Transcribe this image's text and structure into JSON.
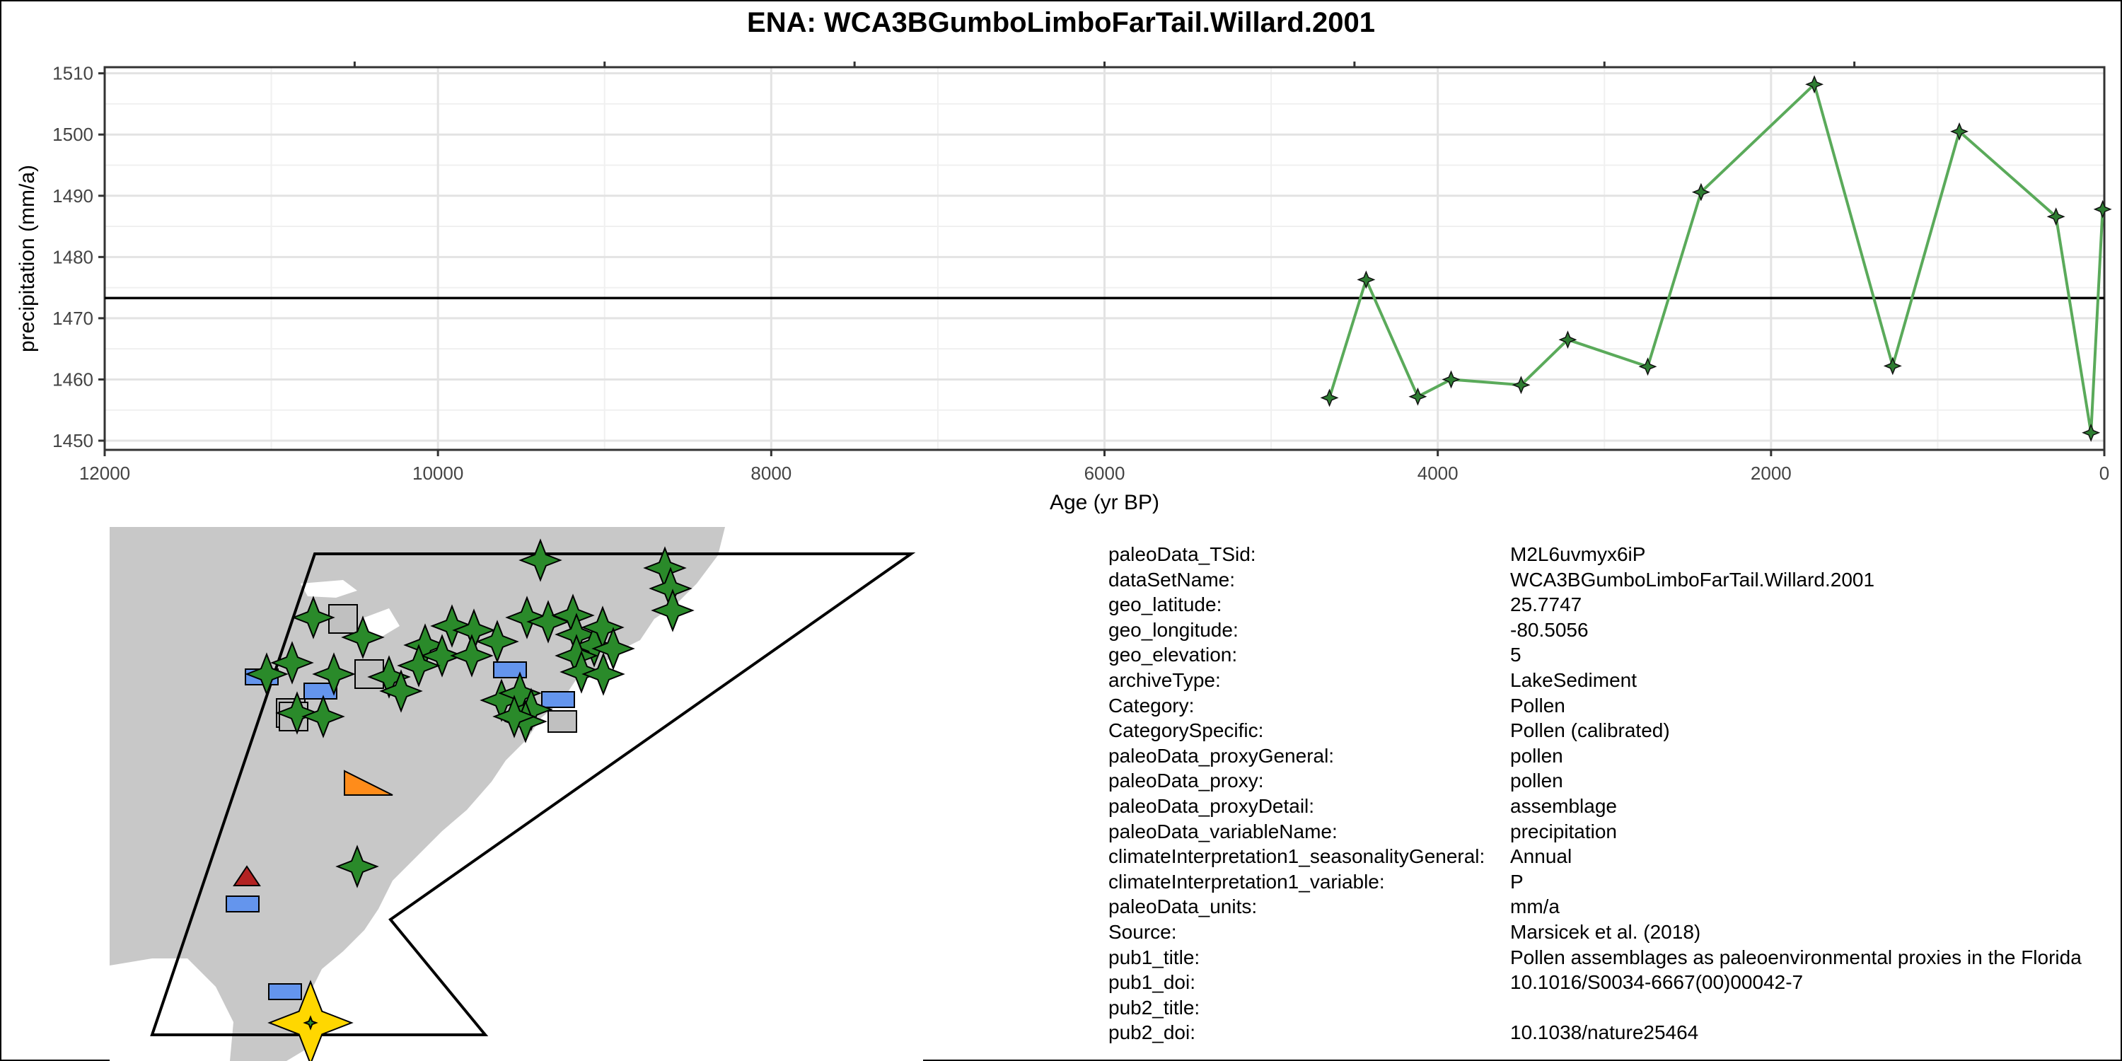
{
  "title": "ENA: WCA3BGumboLimboFarTail.Willard.2001",
  "chart_data": {
    "type": "line",
    "title": "ENA: WCA3BGumboLimboFarTail.Willard.2001",
    "xlabel": "Age (yr BP)",
    "ylabel": "precipitation (mm/a)",
    "xlim": [
      12000,
      0
    ],
    "x_reversed": true,
    "ylim": [
      1448.5,
      1511
    ],
    "x_ticks": [
      12000,
      10000,
      8000,
      6000,
      4000,
      2000,
      0
    ],
    "y_ticks": [
      1450,
      1460,
      1470,
      1480,
      1490,
      1500,
      1510
    ],
    "grid": true,
    "reference_line_y": 1473.3,
    "series": [
      {
        "color": "#5aaa5a",
        "marker_color": "#2e7d32",
        "x": [
          4650,
          4430,
          4120,
          3920,
          3500,
          3220,
          2740,
          2420,
          1740,
          1270,
          870,
          290,
          80,
          10
        ],
        "y": [
          1457,
          1476.3,
          1457.2,
          1460,
          1459.1,
          1466.5,
          1462.1,
          1490.6,
          1508.2,
          1462.2,
          1500.5,
          1486.6,
          1451.3,
          1487.8
        ]
      }
    ]
  },
  "metadata": [
    {
      "key": "paleoData_TSid:",
      "value": "M2L6uvmyx6iP"
    },
    {
      "key": "dataSetName:",
      "value": "WCA3BGumboLimboFarTail.Willard.2001"
    },
    {
      "key": "geo_latitude:",
      "value": "25.7747"
    },
    {
      "key": "geo_longitude:",
      "value": "-80.5056"
    },
    {
      "key": "geo_elevation:",
      "value": "5"
    },
    {
      "key": "archiveType:",
      "value": "LakeSediment"
    },
    {
      "key": "Category:",
      "value": "Pollen"
    },
    {
      "key": "CategorySpecific:",
      "value": "Pollen (calibrated)"
    },
    {
      "key": "paleoData_proxyGeneral:",
      "value": "pollen"
    },
    {
      "key": "paleoData_proxy:",
      "value": "pollen"
    },
    {
      "key": "paleoData_proxyDetail:",
      "value": "assemblage"
    },
    {
      "key": "paleoData_variableName:",
      "value": "precipitation"
    },
    {
      "key": "climateInterpretation1_seasonalityGeneral:",
      "value": "Annual"
    },
    {
      "key": "climateInterpretation1_variable:",
      "value": "P"
    },
    {
      "key": "paleoData_units:",
      "value": "mm/a"
    },
    {
      "key": "Source:",
      "value": "Marsicek et al. (2018)"
    },
    {
      "key": "pub1_title:",
      "value": "Pollen assemblages as paleoenvironmental proxies in the Florida"
    },
    {
      "key": "pub1_doi:",
      "value": "10.1016/S0034-6667(00)00042-7"
    },
    {
      "key": "pub2_title:",
      "value": ""
    },
    {
      "key": "pub2_doi:",
      "value": "10.1038/nature25464"
    }
  ],
  "map": {
    "land_color": "#c8c8c8",
    "ocean_color": "#ffffff",
    "marker_colors": {
      "star": "#2a8a2a",
      "square": "#c0c0c0",
      "rect": "#6495ed",
      "triangle_red": "#b22222",
      "triangle_orange": "#ff8c1a",
      "highlight": "#ffd700"
    }
  }
}
